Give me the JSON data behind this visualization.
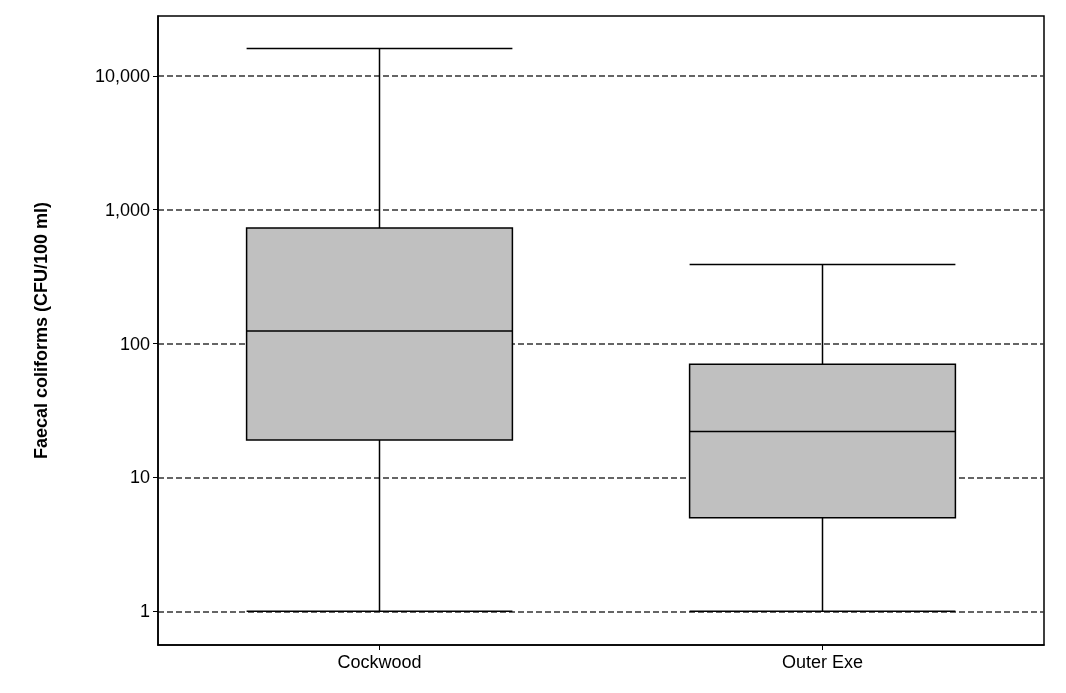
{
  "chart_data": {
    "type": "box",
    "ylabel": "Faecal coliforms (CFU/100 ml)",
    "categories": [
      "Cockwood",
      "Outer Exe"
    ],
    "series": [
      {
        "color": "#c0c0c0",
        "boxes": [
          {
            "low": 1,
            "q1": 19,
            "median": 124,
            "q3": 730,
            "high": 16000
          },
          {
            "low": 1,
            "q1": 5,
            "median": 22,
            "q3": 70,
            "high": 390
          }
        ]
      }
    ],
    "log": "y",
    "ylim": [
      0.56,
      28000
    ],
    "yticks": [
      1,
      10,
      100,
      {
        "value": 1000,
        "label": "1,000"
      },
      {
        "value": 10000,
        "label": "10,000"
      }
    ],
    "grid": "y",
    "line_style": "dashed"
  }
}
